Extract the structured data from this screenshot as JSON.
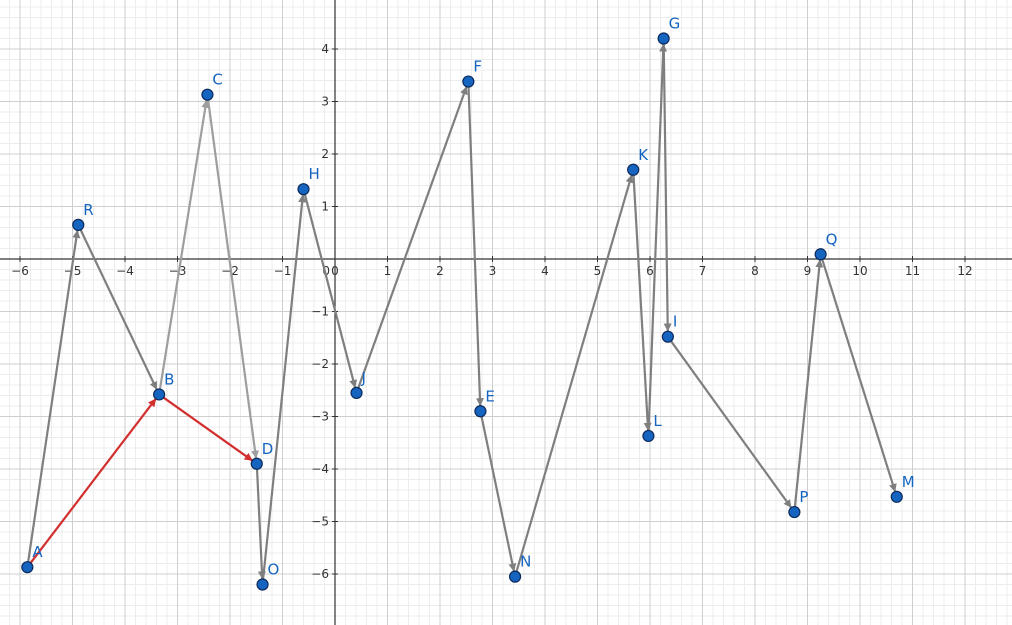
{
  "chart_data": {
    "type": "scatter",
    "title": "",
    "xlabel": "",
    "ylabel": "",
    "xlim": [
      -6.5,
      12.9
    ],
    "ylim": [
      -7,
      5
    ],
    "grid": true,
    "x_ticks": [
      -6,
      -5,
      -4,
      -3,
      -2,
      -1,
      0,
      1,
      2,
      3,
      4,
      5,
      6,
      7,
      8,
      9,
      10,
      11,
      12
    ],
    "y_ticks": [
      -6,
      -5,
      -4,
      -3,
      -2,
      -1,
      1,
      2,
      3,
      4
    ],
    "origin_label": "0",
    "points": [
      {
        "name": "A",
        "x": -5.86,
        "y": -5.87
      },
      {
        "name": "B",
        "x": -3.35,
        "y": -2.58
      },
      {
        "name": "C",
        "x": -2.43,
        "y": 3.13
      },
      {
        "name": "D",
        "x": -1.49,
        "y": -3.9
      },
      {
        "name": "E",
        "x": 2.77,
        "y": -2.9
      },
      {
        "name": "F",
        "x": 2.54,
        "y": 3.38
      },
      {
        "name": "G",
        "x": 6.26,
        "y": 4.2
      },
      {
        "name": "H",
        "x": -0.6,
        "y": 1.33
      },
      {
        "name": "I",
        "x": 6.34,
        "y": -1.48
      },
      {
        "name": "J",
        "x": 0.41,
        "y": -2.55
      },
      {
        "name": "K",
        "x": 5.68,
        "y": 1.7
      },
      {
        "name": "L",
        "x": 5.97,
        "y": -3.37
      },
      {
        "name": "M",
        "x": 10.7,
        "y": -4.53
      },
      {
        "name": "N",
        "x": 3.43,
        "y": -6.05
      },
      {
        "name": "O",
        "x": -1.38,
        "y": -6.2
      },
      {
        "name": "P",
        "x": 8.75,
        "y": -4.82
      },
      {
        "name": "Q",
        "x": 9.25,
        "y": 0.09
      },
      {
        "name": "R",
        "x": -4.89,
        "y": 0.65
      }
    ],
    "vectors": [
      {
        "from": "A",
        "to": "R",
        "color": "#7f7f7f"
      },
      {
        "from": "R",
        "to": "B",
        "color": "#7f7f7f"
      },
      {
        "from": "B",
        "to": "C",
        "color": "#9e9e9e"
      },
      {
        "from": "C",
        "to": "D",
        "color": "#9e9e9e"
      },
      {
        "from": "D",
        "to": "O",
        "color": "#7f7f7f"
      },
      {
        "from": "O",
        "to": "H",
        "color": "#7f7f7f"
      },
      {
        "from": "H",
        "to": "J",
        "color": "#7f7f7f"
      },
      {
        "from": "J",
        "to": "F",
        "color": "#7f7f7f"
      },
      {
        "from": "F",
        "to": "E",
        "color": "#7f7f7f"
      },
      {
        "from": "E",
        "to": "N",
        "color": "#7f7f7f"
      },
      {
        "from": "N",
        "to": "K",
        "color": "#7f7f7f"
      },
      {
        "from": "K",
        "to": "L",
        "color": "#7f7f7f"
      },
      {
        "from": "L",
        "to": "G",
        "color": "#7f7f7f"
      },
      {
        "from": "G",
        "to": "I",
        "color": "#7f7f7f"
      },
      {
        "from": "I",
        "to": "P",
        "color": "#7f7f7f"
      },
      {
        "from": "P",
        "to": "Q",
        "color": "#7f7f7f"
      },
      {
        "from": "Q",
        "to": "M",
        "color": "#7f7f7f"
      },
      {
        "from": "A",
        "to": "B",
        "color": "#d32f2f"
      },
      {
        "from": "B",
        "to": "D",
        "color": "#d32f2f"
      }
    ],
    "colors": {
      "point_fill": "#1565c0",
      "point_stroke": "#0d2a5c",
      "label": "#1565c0",
      "highlight": "#d32f2f",
      "arrow": "#7f7f7f"
    }
  }
}
